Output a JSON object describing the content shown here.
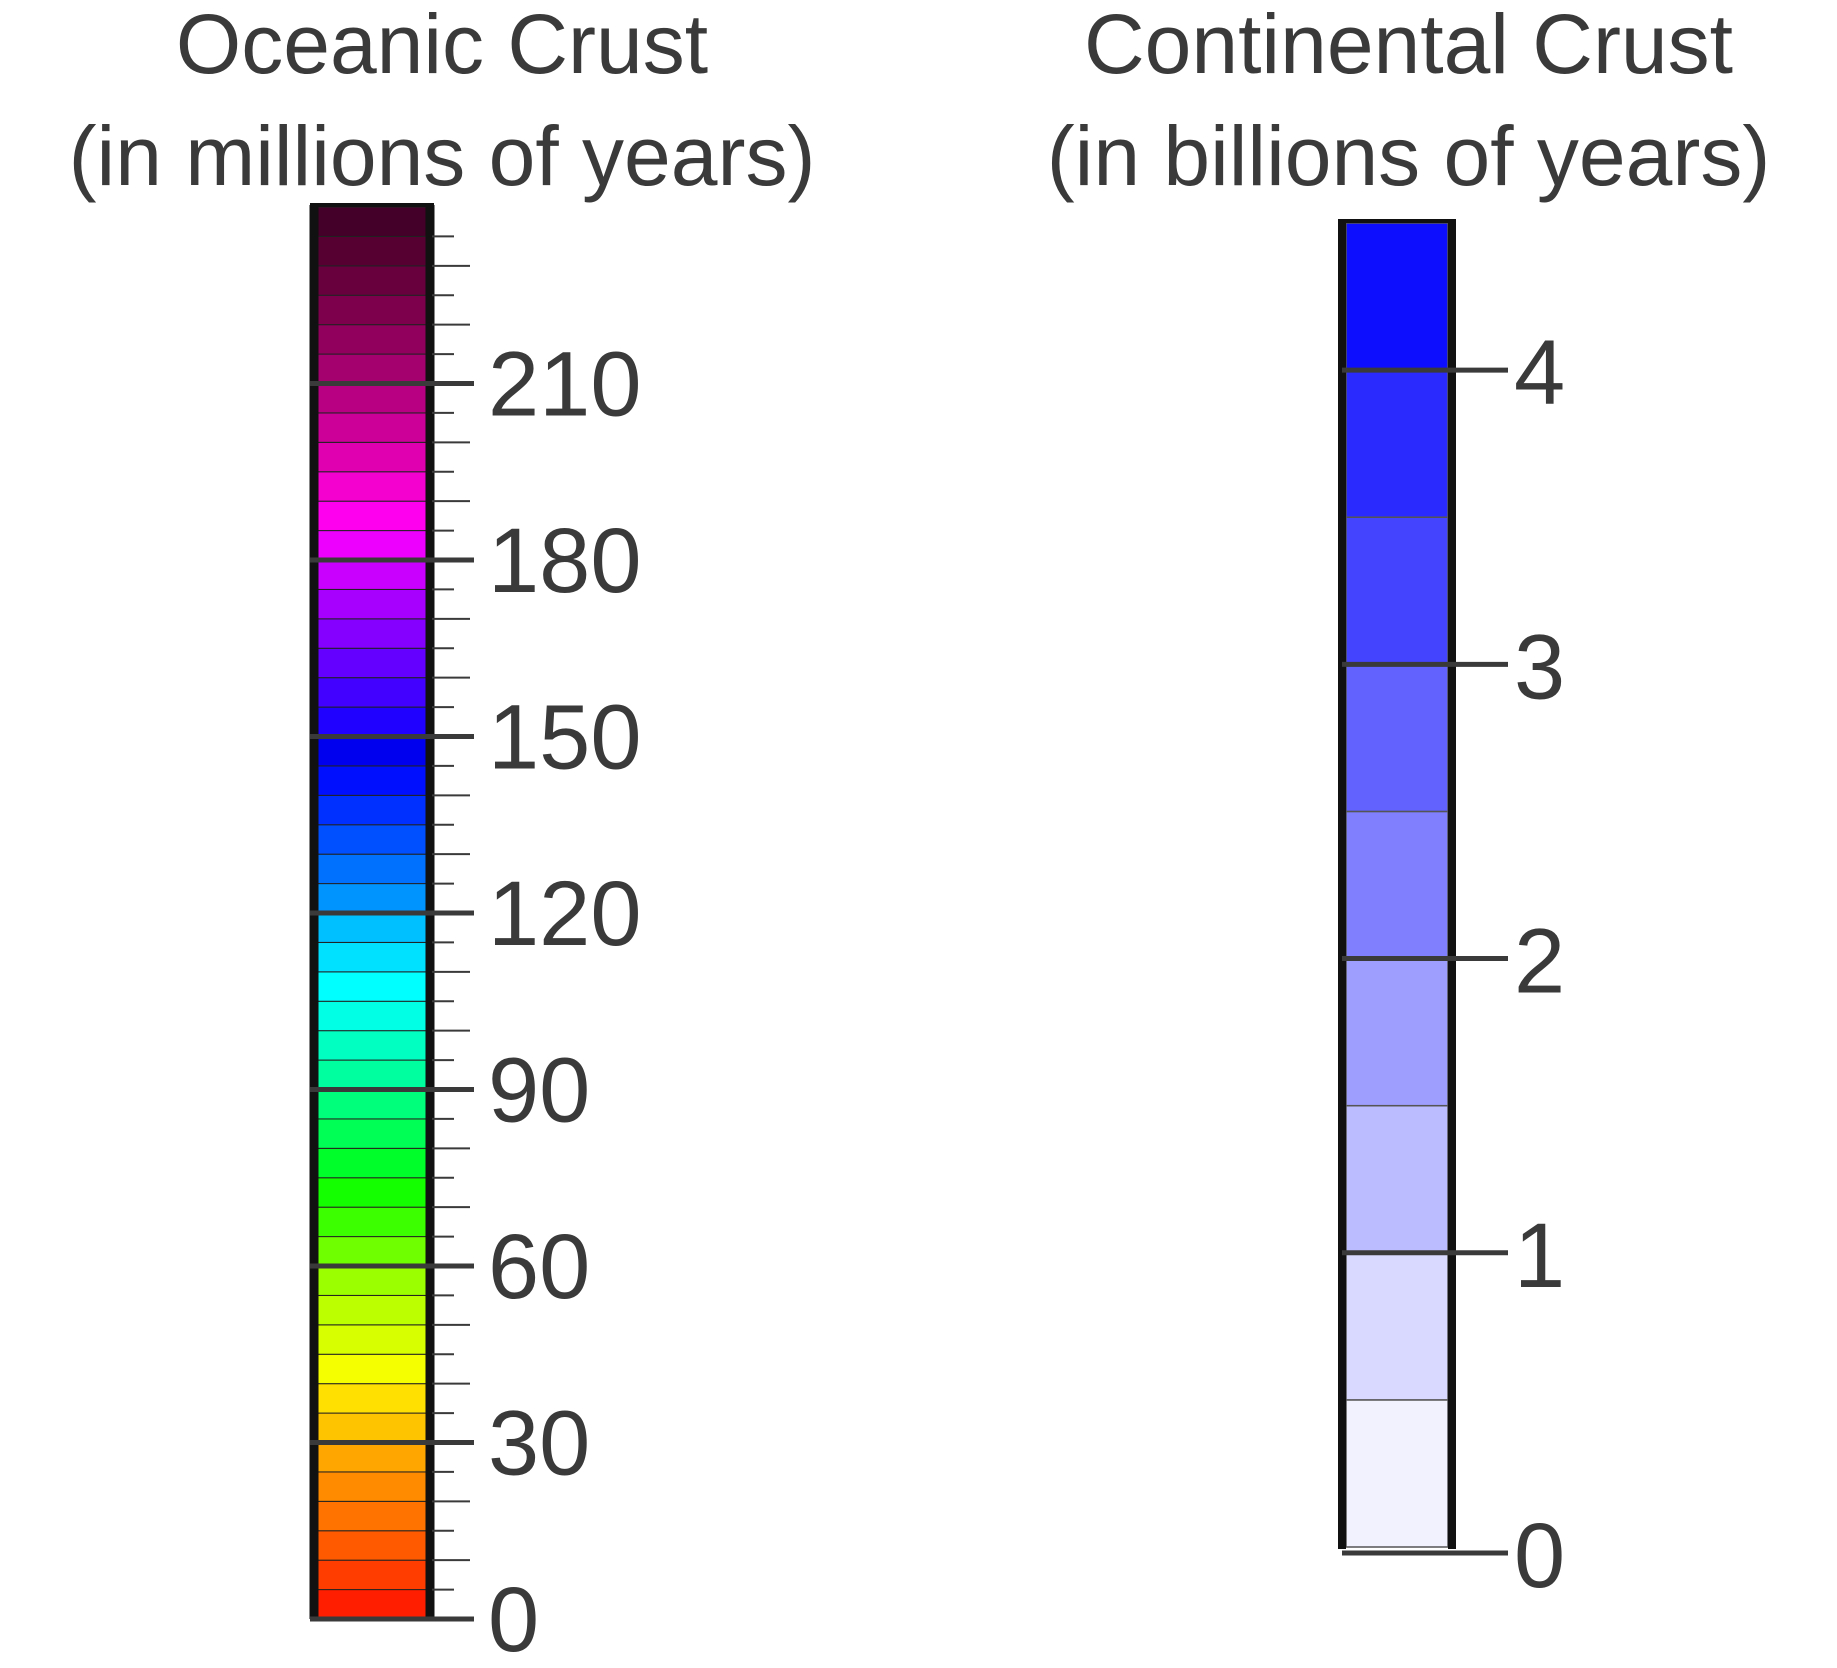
{
  "oceanic": {
    "title_line1": "Oceanic Crust",
    "title_line2": "(in millions of years)",
    "range": [
      0,
      240
    ],
    "band_step": 5,
    "minor_tick_step": 5,
    "major_ticks": [
      0,
      30,
      60,
      90,
      120,
      150,
      180,
      210
    ],
    "tick_labels": [
      "0",
      "30",
      "60",
      "90",
      "120",
      "150",
      "180",
      "210"
    ],
    "band_colors": [
      "#ff1f00",
      "#ff3d00",
      "#ff5a00",
      "#ff7400",
      "#ff8c00",
      "#ffa600",
      "#ffc400",
      "#ffe000",
      "#f5ff00",
      "#d8ff00",
      "#bbff00",
      "#9cff00",
      "#70ff00",
      "#3cff00",
      "#14ff00",
      "#00ff2a",
      "#00ff55",
      "#00ff7a",
      "#00ff9e",
      "#00ffc0",
      "#00ffe4",
      "#00ffff",
      "#00e0ff",
      "#00c0ff",
      "#0094ff",
      "#0070ff",
      "#0050ff",
      "#0030ff",
      "#0010ff",
      "#0000ee",
      "#2000ff",
      "#4200ff",
      "#6400ff",
      "#8600ff",
      "#a800ff",
      "#ca00ff",
      "#ee00ff",
      "#ff00ee",
      "#f400cf",
      "#e000b0",
      "#cc0098",
      "#b80082",
      "#a4006e",
      "#90005c",
      "#7c004c",
      "#68003e",
      "#560032",
      "#440028"
    ]
  },
  "continental": {
    "title_line1": "Continental Crust",
    "title_line2": "(in billions of years)",
    "range": [
      0,
      4.5
    ],
    "band_step": 0.5,
    "major_ticks": [
      0,
      1,
      2,
      3,
      4
    ],
    "tick_labels": [
      "0",
      "1",
      "2",
      "3",
      "4"
    ],
    "band_colors": [
      "#f2f2ff",
      "#d9d9ff",
      "#bbbbff",
      "#9e9eff",
      "#8080ff",
      "#6262ff",
      "#4444ff",
      "#2a2aff",
      "#0e0eff"
    ]
  },
  "chart_data": [
    {
      "type": "colorbar",
      "title": "Oceanic Crust (in millions of years)",
      "ylim": [
        0,
        240
      ],
      "ticks": [
        0,
        30,
        60,
        90,
        120,
        150,
        180,
        210
      ],
      "bin_width": 5
    },
    {
      "type": "colorbar",
      "title": "Continental Crust (in billions of years)",
      "ylim": [
        0,
        4.5
      ],
      "ticks": [
        0,
        1,
        2,
        3,
        4
      ],
      "bin_width": 0.5
    }
  ]
}
